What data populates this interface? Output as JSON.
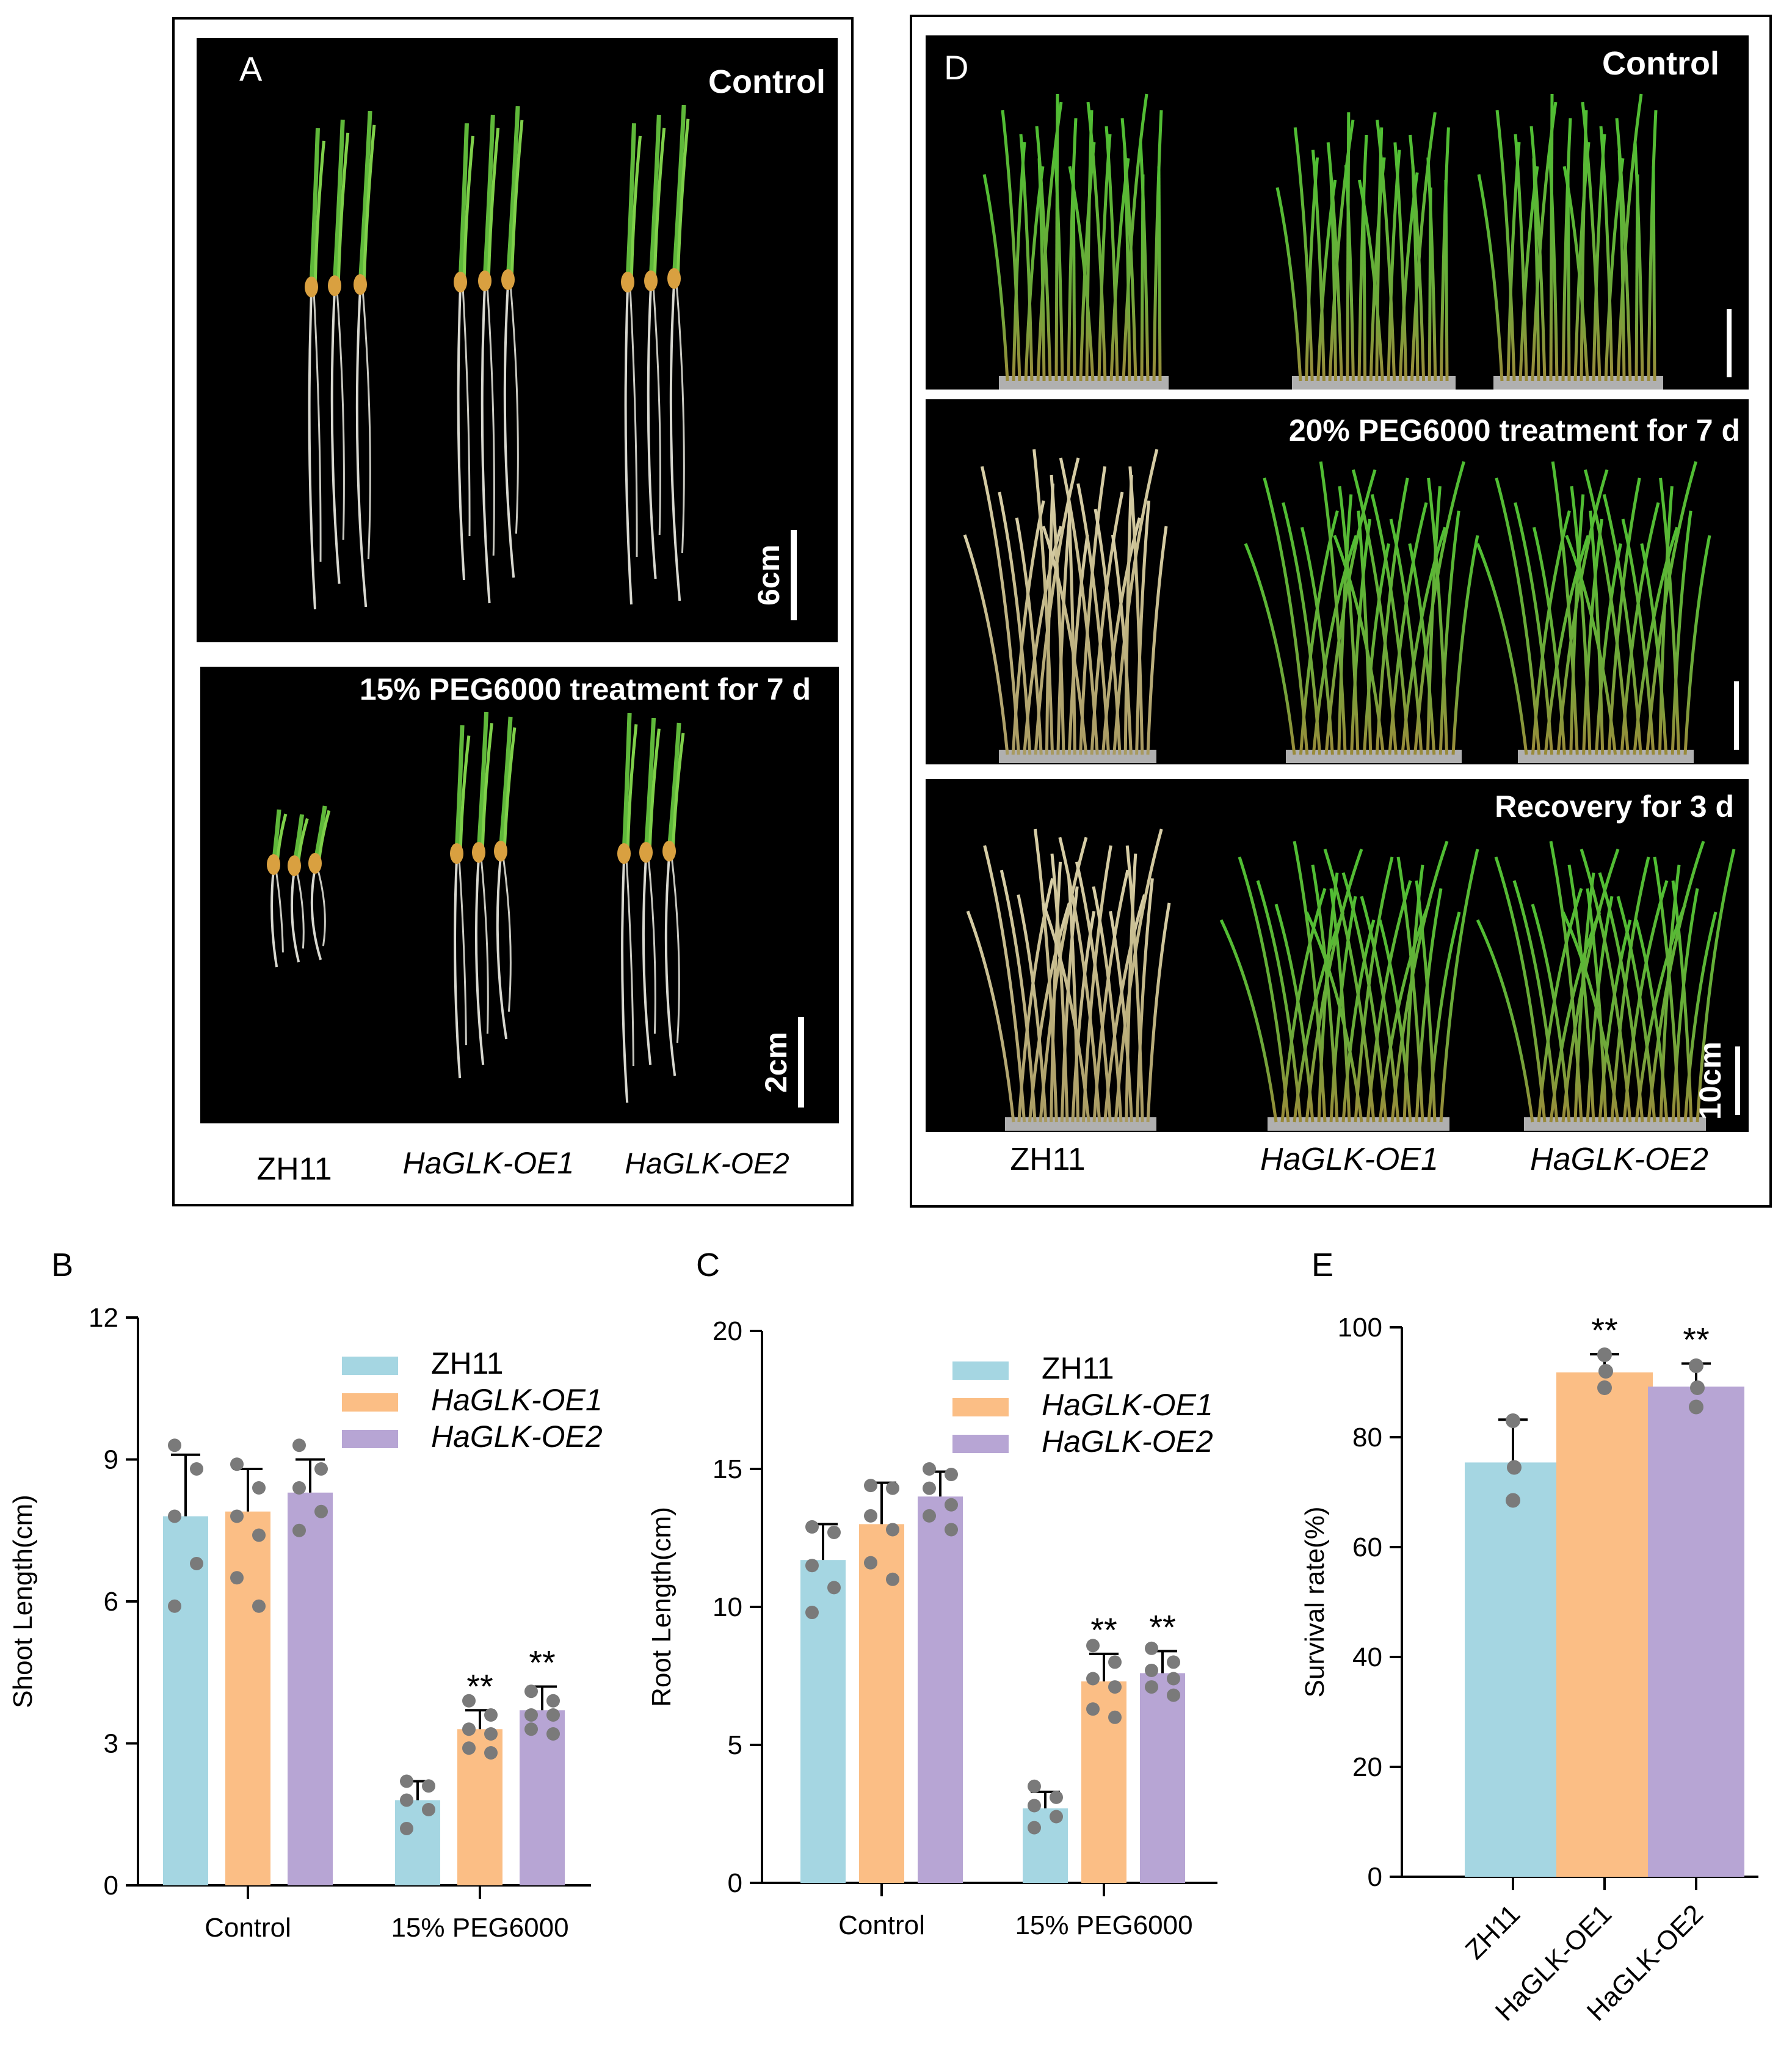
{
  "panels": {
    "A": {
      "letter": "A",
      "control_label": "Control",
      "treatment_label": "15% PEG6000 treatment for 7 d",
      "scale_top": "6cm",
      "scale_bottom": "2cm",
      "genotypes": [
        "ZH11",
        "HaGLK-OE1",
        "HaGLK-OE2"
      ]
    },
    "D": {
      "letter": "D",
      "control_label": "Control",
      "treatment_label": "20% PEG6000 treatment for 7 d",
      "recovery_label": "Recovery for 3 d",
      "scale_label": "10cm",
      "genotypes": [
        "ZH11",
        "HaGLK-OE1",
        "HaGLK-OE2"
      ]
    }
  },
  "colors": {
    "ZH11": "#a5d6e2",
    "HaGLK-OE1": "#fbbe85",
    "HaGLK-OE2": "#b7a5d4",
    "points": "#7a7a7a",
    "photo_bg": "#000000"
  },
  "chart_data": [
    {
      "panel": "B",
      "type": "bar",
      "ylabel": "Shoot Length(cm)",
      "ylim": [
        0,
        12
      ],
      "yticks": [
        "0",
        "3",
        "6",
        "9",
        "12"
      ],
      "categories": [
        "Control",
        "15% PEG6000"
      ],
      "legend": {
        "placement": "top-right",
        "entries": [
          "ZH11",
          "HaGLK-OE1",
          "HaGLK-OE2"
        ]
      },
      "series": [
        {
          "name": "ZH11",
          "values": [
            7.8,
            1.8
          ],
          "err": [
            1.3,
            0.4
          ],
          "points": [
            [
              9.3,
              8.8,
              7.8,
              6.8,
              5.9
            ],
            [
              2.2,
              2.1,
              1.8,
              1.6,
              1.2
            ]
          ]
        },
        {
          "name": "HaGLK-OE1",
          "values": [
            7.9,
            3.3
          ],
          "err": [
            0.9,
            0.4
          ],
          "points": [
            [
              8.9,
              8.4,
              7.8,
              7.4,
              6.5,
              5.9
            ],
            [
              3.9,
              3.6,
              3.3,
              3.2,
              2.9,
              2.8
            ]
          ]
        },
        {
          "name": "HaGLK-OE2",
          "values": [
            8.3,
            3.7
          ],
          "err": [
            0.7,
            0.5
          ],
          "points": [
            [
              9.3,
              8.8,
              8.4,
              7.9,
              7.5
            ],
            [
              4.1,
              3.9,
              3.6,
              3.6,
              3.3,
              3.2
            ]
          ]
        }
      ],
      "significance": [
        "",
        "",
        "",
        "",
        "**",
        "**"
      ]
    },
    {
      "panel": "C",
      "type": "bar",
      "ylabel": "Root Length(cm)",
      "ylim": [
        0,
        20
      ],
      "yticks": [
        "0",
        "5",
        "10",
        "15",
        "20"
      ],
      "categories": [
        "Control",
        "15% PEG6000"
      ],
      "legend": {
        "placement": "top-right",
        "entries": [
          "ZH11",
          "HaGLK-OE1",
          "HaGLK-OE2"
        ]
      },
      "series": [
        {
          "name": "ZH11",
          "values": [
            11.7,
            2.7
          ],
          "err": [
            1.3,
            0.6
          ],
          "points": [
            [
              12.9,
              12.7,
              11.5,
              10.7,
              9.8
            ],
            [
              3.5,
              3.1,
              2.8,
              2.4,
              2.0
            ]
          ]
        },
        {
          "name": "HaGLK-OE1",
          "values": [
            13.0,
            7.3
          ],
          "err": [
            1.5,
            1.0
          ],
          "points": [
            [
              14.4,
              14.3,
              13.3,
              12.8,
              11.6,
              11.0
            ],
            [
              8.6,
              8.0,
              7.4,
              7.1,
              6.3,
              6.0
            ]
          ]
        },
        {
          "name": "HaGLK-OE2",
          "values": [
            14.0,
            7.6
          ],
          "err": [
            0.9,
            0.8
          ],
          "points": [
            [
              15.0,
              14.8,
              14.3,
              13.7,
              13.3,
              12.8
            ],
            [
              8.5,
              8.0,
              7.7,
              7.4,
              7.1,
              6.8
            ]
          ]
        }
      ],
      "significance": [
        "",
        "",
        "",
        "",
        "**",
        "**"
      ]
    },
    {
      "panel": "E",
      "type": "bar",
      "ylabel": "Survival rate(%)",
      "ylim": [
        0,
        100
      ],
      "yticks": [
        "0",
        "20",
        "40",
        "60",
        "80",
        "100"
      ],
      "categories": [
        "ZH11",
        "HaGLK-OE1",
        "HaGLK-OE2"
      ],
      "values": [
        75.4,
        91.8,
        89.2
      ],
      "err": [
        7.8,
        3.3,
        4.2
      ],
      "points": [
        [
          83.0,
          74.5,
          68.5
        ],
        [
          95.0,
          92.0,
          89.0
        ],
        [
          93.0,
          89.0,
          85.5
        ]
      ],
      "significance": [
        "",
        "**",
        "**"
      ]
    }
  ]
}
